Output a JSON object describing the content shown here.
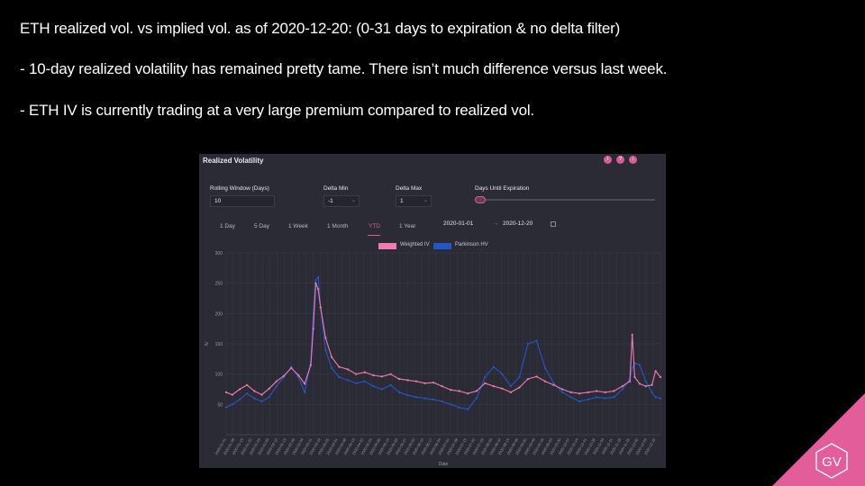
{
  "slide": {
    "bullet1": "ETH realized vol. vs implied vol. as of 2020-12-20: (0-31 days to expiration & no delta filter)",
    "bullet2": "- 10-day realized volatility has remained pretty tame. There isn’t much difference versus last week.",
    "bullet3": "- ETH IV is currently trading at a very large premium compared to realized vol.",
    "logo_text": "GV"
  },
  "panel": {
    "title": "Realized Volatility",
    "toolbar_icons": [
      "info-icon",
      "help-icon",
      "download-icon"
    ],
    "rolling_window_label": "Rolling Window (Days)",
    "rolling_window_value": "10",
    "delta_min_label": "Delta Min",
    "delta_min_value": "-1",
    "delta_max_label": "Delta Max",
    "delta_max_value": "1",
    "days_until_expiration_label": "Days Until Expiration",
    "ranges": [
      "1 Day",
      "5 Day",
      "1 Week",
      "1 Month",
      "YTD",
      "1 Year"
    ],
    "active_range": "YTD",
    "date_from": "2020-01-01",
    "date_to": "2020-12-20",
    "date_separator": "→"
  },
  "colors": {
    "weighted_iv": "#f07ab4",
    "parkinson_hv": "#2356c9",
    "accent": "#d85c98",
    "background": "#000000",
    "panel": "#2b2b36"
  },
  "chart_data": {
    "type": "line",
    "xlabel": "Date",
    "ylabel": "IV",
    "ylim": [
      0,
      300
    ],
    "yticks": [
      50,
      100,
      150,
      200,
      250,
      300
    ],
    "x_start": "2020-01-01",
    "x_end": "2020-12-20",
    "legend_placement": "top",
    "grid": true,
    "series": [
      {
        "name": "Weighted IV",
        "color": "#f07ab4",
        "points": [
          [
            "2020-01-01",
            70
          ],
          [
            "2020-01-06",
            66
          ],
          [
            "2020-01-12",
            75
          ],
          [
            "2020-01-18",
            82
          ],
          [
            "2020-01-24",
            72
          ],
          [
            "2020-01-30",
            66
          ],
          [
            "2020-02-05",
            76
          ],
          [
            "2020-02-11",
            88
          ],
          [
            "2020-02-17",
            97
          ],
          [
            "2020-02-23",
            110
          ],
          [
            "2020-02-29",
            98
          ],
          [
            "2020-03-05",
            84
          ],
          [
            "2020-03-10",
            115
          ],
          [
            "2020-03-12",
            175
          ],
          [
            "2020-03-14",
            250
          ],
          [
            "2020-03-16",
            240
          ],
          [
            "2020-03-18",
            210
          ],
          [
            "2020-03-22",
            160
          ],
          [
            "2020-03-27",
            128
          ],
          [
            "2020-04-02",
            112
          ],
          [
            "2020-04-09",
            108
          ],
          [
            "2020-04-16",
            100
          ],
          [
            "2020-04-23",
            103
          ],
          [
            "2020-04-30",
            98
          ],
          [
            "2020-05-07",
            96
          ],
          [
            "2020-05-14",
            100
          ],
          [
            "2020-05-21",
            92
          ],
          [
            "2020-05-28",
            90
          ],
          [
            "2020-06-04",
            88
          ],
          [
            "2020-06-11",
            85
          ],
          [
            "2020-06-18",
            86
          ],
          [
            "2020-06-25",
            80
          ],
          [
            "2020-07-02",
            74
          ],
          [
            "2020-07-09",
            72
          ],
          [
            "2020-07-16",
            68
          ],
          [
            "2020-07-23",
            72
          ],
          [
            "2020-07-30",
            85
          ],
          [
            "2020-08-06",
            80
          ],
          [
            "2020-08-13",
            76
          ],
          [
            "2020-08-20",
            70
          ],
          [
            "2020-08-27",
            78
          ],
          [
            "2020-09-03",
            92
          ],
          [
            "2020-09-10",
            96
          ],
          [
            "2020-09-17",
            88
          ],
          [
            "2020-09-24",
            82
          ],
          [
            "2020-10-01",
            75
          ],
          [
            "2020-10-08",
            70
          ],
          [
            "2020-10-15",
            68
          ],
          [
            "2020-10-22",
            70
          ],
          [
            "2020-10-29",
            72
          ],
          [
            "2020-11-05",
            70
          ],
          [
            "2020-11-12",
            72
          ],
          [
            "2020-11-19",
            80
          ],
          [
            "2020-11-25",
            88
          ],
          [
            "2020-11-27",
            165
          ],
          [
            "2020-11-29",
            95
          ],
          [
            "2020-12-03",
            84
          ],
          [
            "2020-12-08",
            80
          ],
          [
            "2020-12-13",
            82
          ],
          [
            "2020-12-16",
            105
          ],
          [
            "2020-12-20",
            95
          ]
        ]
      },
      {
        "name": "Parkinson HV",
        "color": "#2356c9",
        "points": [
          [
            "2020-01-01",
            45
          ],
          [
            "2020-01-06",
            50
          ],
          [
            "2020-01-12",
            58
          ],
          [
            "2020-01-18",
            68
          ],
          [
            "2020-01-24",
            60
          ],
          [
            "2020-01-30",
            55
          ],
          [
            "2020-02-05",
            62
          ],
          [
            "2020-02-11",
            80
          ],
          [
            "2020-02-17",
            95
          ],
          [
            "2020-02-23",
            112
          ],
          [
            "2020-02-29",
            95
          ],
          [
            "2020-03-05",
            70
          ],
          [
            "2020-03-10",
            120
          ],
          [
            "2020-03-12",
            200
          ],
          [
            "2020-03-14",
            255
          ],
          [
            "2020-03-16",
            260
          ],
          [
            "2020-03-18",
            210
          ],
          [
            "2020-03-22",
            140
          ],
          [
            "2020-03-27",
            110
          ],
          [
            "2020-04-02",
            95
          ],
          [
            "2020-04-09",
            90
          ],
          [
            "2020-04-16",
            85
          ],
          [
            "2020-04-23",
            88
          ],
          [
            "2020-04-30",
            80
          ],
          [
            "2020-05-07",
            75
          ],
          [
            "2020-05-14",
            82
          ],
          [
            "2020-05-21",
            70
          ],
          [
            "2020-05-28",
            65
          ],
          [
            "2020-06-04",
            62
          ],
          [
            "2020-06-11",
            60
          ],
          [
            "2020-06-18",
            58
          ],
          [
            "2020-06-25",
            55
          ],
          [
            "2020-07-02",
            50
          ],
          [
            "2020-07-09",
            45
          ],
          [
            "2020-07-16",
            42
          ],
          [
            "2020-07-23",
            60
          ],
          [
            "2020-07-30",
            95
          ],
          [
            "2020-08-06",
            112
          ],
          [
            "2020-08-13",
            100
          ],
          [
            "2020-08-20",
            80
          ],
          [
            "2020-08-27",
            95
          ],
          [
            "2020-09-03",
            150
          ],
          [
            "2020-09-10",
            155
          ],
          [
            "2020-09-17",
            110
          ],
          [
            "2020-09-24",
            85
          ],
          [
            "2020-10-01",
            70
          ],
          [
            "2020-10-08",
            62
          ],
          [
            "2020-10-15",
            55
          ],
          [
            "2020-10-22",
            58
          ],
          [
            "2020-10-29",
            62
          ],
          [
            "2020-11-05",
            60
          ],
          [
            "2020-11-12",
            62
          ],
          [
            "2020-11-19",
            75
          ],
          [
            "2020-11-25",
            92
          ],
          [
            "2020-11-27",
            110
          ],
          [
            "2020-11-29",
            118
          ],
          [
            "2020-12-03",
            115
          ],
          [
            "2020-12-08",
            88
          ],
          [
            "2020-12-13",
            70
          ],
          [
            "2020-12-16",
            62
          ],
          [
            "2020-12-20",
            60
          ]
        ]
      }
    ]
  }
}
